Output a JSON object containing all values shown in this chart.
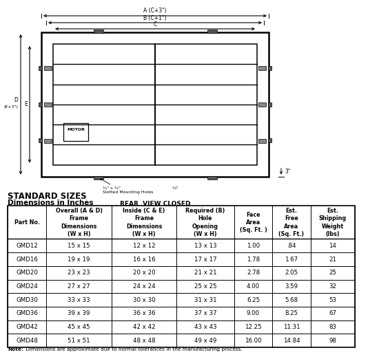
{
  "title_standard": "STANDARD SIZES",
  "title_dims": "Dimensions in Inches",
  "col_headers": [
    "Part No.",
    "Overall (A & D)\nFrame\nDimensions\n(W x H)",
    "Inside (C & E)\nFrame\nDimensions\n(W x H)",
    "Required (B)\nHole\nOpening\n(W x H)",
    "Face\nArea\n(Sq. Ft. )",
    "Est.\nFree\nArea\n(Sq. Ft.)",
    "Est.\nShipping\nWeight\n(lbs)"
  ],
  "rows": [
    [
      "GMD12",
      "15 x 15",
      "12 x 12",
      "13 x 13",
      "1.00",
      ".84",
      "14"
    ],
    [
      "GMD16",
      "19 x 19",
      "16 x 16",
      "17 x 17",
      "1.78",
      "1.67",
      "21"
    ],
    [
      "GMD20",
      "23 x 23",
      "20 x 20",
      "21 x 21",
      "2.78",
      "2.05",
      "25"
    ],
    [
      "GMD24",
      "27 x 27",
      "24 x 24",
      "25 x 25",
      "4.00",
      "3.59",
      "32"
    ],
    [
      "GMD30",
      "33 x 33",
      "30 x 30",
      "31 x 31",
      "6.25",
      "5.68",
      "53"
    ],
    [
      "GMD36",
      "39 x 39",
      "36 x 36",
      "37 x 37",
      "9.00",
      "8.25",
      "67"
    ],
    [
      "GMD42",
      "45 x 45",
      "42 x 42",
      "43 x 43",
      "12.25",
      "11.31",
      "83"
    ],
    [
      "GMD48",
      "51 x 51",
      "48 x 48",
      "49 x 49",
      "16.00",
      "14.84",
      "98"
    ]
  ],
  "note_bold": "Note:",
  "note_rest": " Dimensions are approximate due to normal tolerances in the manufacturing process.",
  "diagram_label": "REAR  VIEW CLOSED",
  "bg_color": "#ffffff",
  "line_color": "#000000"
}
